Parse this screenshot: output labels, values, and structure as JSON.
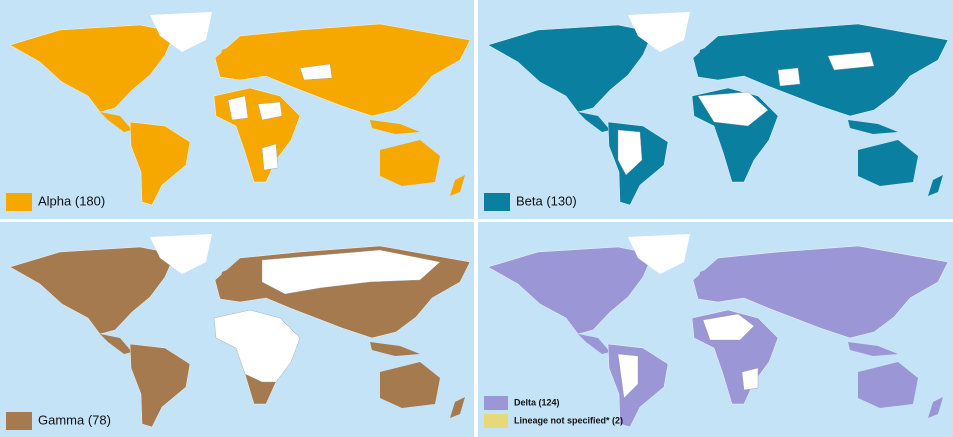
{
  "panels": [
    {
      "legend": [
        {
          "label": "Alpha (180)",
          "color": "#f6a800"
        }
      ]
    },
    {
      "legend": [
        {
          "label": "Beta (130)",
          "color": "#0a7f9f"
        }
      ]
    },
    {
      "legend": [
        {
          "label": "Gamma (78)",
          "color": "#a57a4e"
        }
      ]
    },
    {
      "legend": [
        {
          "label": "Delta (124)",
          "color": "#9b97d6"
        },
        {
          "label": "Lineage not specified* (2)",
          "color": "#e7d97a"
        }
      ]
    }
  ]
}
